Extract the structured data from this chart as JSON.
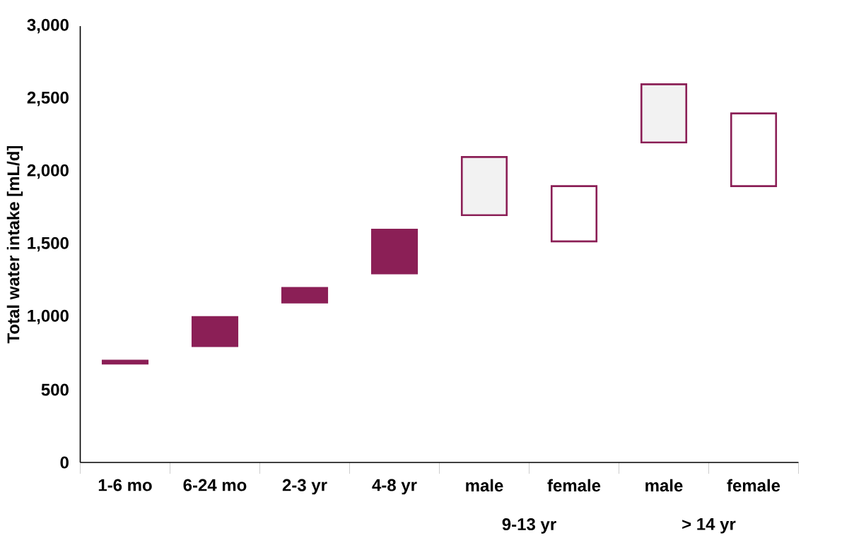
{
  "chart_data": {
    "type": "bar",
    "ylabel": "Total water intake [mL/d]",
    "categories": [
      "1-6 mo",
      "6-24 mo",
      "2-3 yr",
      "4-8 yr",
      "male",
      "female",
      "male",
      "female"
    ],
    "base": [
      680,
      800,
      1100,
      1300,
      1700,
      1520,
      2200,
      1900
    ],
    "values": [
      20,
      200,
      100,
      300,
      400,
      380,
      400,
      500
    ],
    "color": "#8b1f56",
    "colors": [
      "#8b1f56",
      "#8b1f56",
      "#8b1f56",
      "#8b1f56",
      "#f2f2f2",
      "#ffffff",
      "#f2f2f2",
      "#ffffff"
    ],
    "annotations": [
      "9-13  yr",
      "> 14  yr"
    ],
    "ylim": [
      0,
      3000
    ],
    "yticks": [
      0,
      500,
      {
        "value": 1000,
        "label": "1,000"
      },
      {
        "value": 1500,
        "label": "1,500"
      },
      {
        "value": 2000,
        "label": "2,000"
      },
      {
        "value": 2500,
        "label": "2,500"
      },
      {
        "value": 3000,
        "label": "3,000"
      }
    ],
    "grid": false
  }
}
